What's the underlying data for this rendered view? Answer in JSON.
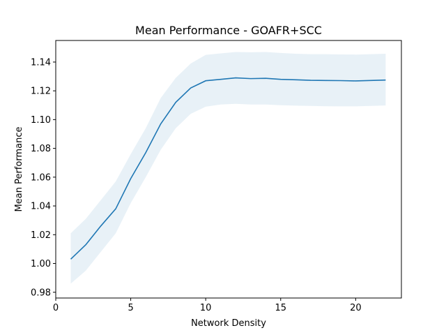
{
  "chart_data": {
    "type": "line",
    "title": "Mean Performance - GOAFR+SCC",
    "xlabel": "Network Density",
    "ylabel": "Mean Performance",
    "xlim": [
      0,
      23.05
    ],
    "ylim": [
      0.976,
      1.155
    ],
    "x_ticks": [
      0,
      5,
      10,
      15,
      20
    ],
    "y_ticks": [
      0.98,
      1.0,
      1.02,
      1.04,
      1.06,
      1.08,
      1.1,
      1.12,
      1.14
    ],
    "y_tick_labels": [
      "0.98",
      "1.00",
      "1.02",
      "1.04",
      "1.06",
      "1.08",
      "1.10",
      "1.12",
      "1.14"
    ],
    "grid": false,
    "colors": {
      "line": "#1f77b4",
      "band": "#1f77b4"
    },
    "series": [
      {
        "x": [
          1,
          2,
          3,
          4,
          5,
          6,
          7,
          8,
          9,
          10,
          11,
          12,
          13,
          14,
          15,
          16,
          17,
          18,
          19,
          20,
          21,
          22
        ],
        "mean": [
          1.003,
          1.013,
          1.026,
          1.038,
          1.059,
          1.077,
          1.097,
          1.112,
          1.122,
          1.127,
          1.128,
          1.129,
          1.1285,
          1.1287,
          1.128,
          1.1277,
          1.1273,
          1.1272,
          1.1271,
          1.1269,
          1.1272,
          1.1275
        ],
        "upper": [
          1.021,
          1.031,
          1.044,
          1.057,
          1.076,
          1.094,
          1.115,
          1.129,
          1.139,
          1.145,
          1.146,
          1.147,
          1.1468,
          1.147,
          1.1463,
          1.1458,
          1.1455,
          1.1455,
          1.1453,
          1.1452,
          1.1455,
          1.1458
        ],
        "lower": [
          0.986,
          0.995,
          1.008,
          1.021,
          1.042,
          1.06,
          1.079,
          1.094,
          1.104,
          1.109,
          1.1105,
          1.111,
          1.1105,
          1.1105,
          1.11,
          1.1097,
          1.1095,
          1.1093,
          1.1092,
          1.1092,
          1.1095,
          1.1098
        ]
      }
    ]
  }
}
